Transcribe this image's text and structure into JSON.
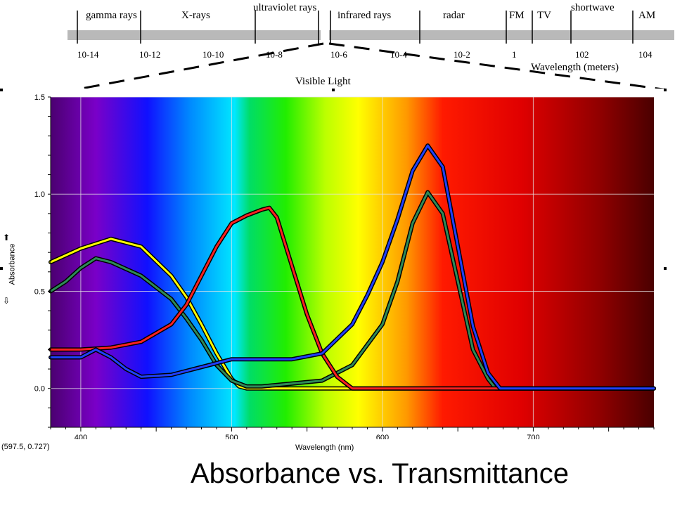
{
  "em_bands": [
    "gamma rays",
    "X-rays",
    "ultraviolet rays",
    "infrared rays",
    "radar",
    "FM",
    "TV",
    "shortwave",
    "AM"
  ],
  "em_ticks": [
    "10-14",
    "10-12",
    "10-10",
    "10-8",
    "10-6",
    "10-4",
    "10-2",
    "1",
    "102",
    "104"
  ],
  "em_axis_label": "Wavelength (meters)",
  "visible_label": "Visible Light",
  "readout": "(597.5, 0.727)",
  "caption": "Absorbance vs. Transmittance",
  "chart_data": {
    "type": "line",
    "xlabel": "Wavelength (nm)",
    "ylabel": "Absorbance",
    "xlim": [
      380,
      780
    ],
    "ylim": [
      -0.2,
      1.5
    ],
    "x_ticks": [
      "400",
      "500",
      "600",
      "700"
    ],
    "y_ticks": [
      "1.5",
      "1.0",
      "0.5",
      "0.0"
    ],
    "grid": true,
    "series": [
      {
        "color": "#ffff00",
        "x": [
          380,
          400,
          420,
          440,
          460,
          470,
          480,
          490,
          500,
          505,
          510,
          600,
          780
        ],
        "y": [
          0.65,
          0.72,
          0.77,
          0.73,
          0.58,
          0.47,
          0.33,
          0.18,
          0.05,
          0.01,
          0.0,
          0.0,
          0.0
        ]
      },
      {
        "color": "#2e8b57",
        "x": [
          380,
          390,
          400,
          410,
          420,
          440,
          460,
          470,
          480,
          490,
          500,
          510,
          520,
          560,
          580,
          600,
          610,
          620,
          630,
          640,
          650,
          660,
          670,
          675,
          780
        ],
        "y": [
          0.5,
          0.55,
          0.62,
          0.67,
          0.65,
          0.58,
          0.46,
          0.36,
          0.25,
          0.12,
          0.04,
          0.01,
          0.01,
          0.04,
          0.12,
          0.33,
          0.55,
          0.85,
          1.01,
          0.9,
          0.55,
          0.2,
          0.05,
          0.0,
          0.0
        ]
      },
      {
        "color": "#ff2020",
        "x": [
          380,
          400,
          420,
          440,
          460,
          470,
          480,
          490,
          500,
          510,
          520,
          525,
          530,
          540,
          550,
          560,
          570,
          580,
          780
        ],
        "y": [
          0.2,
          0.2,
          0.21,
          0.24,
          0.33,
          0.43,
          0.58,
          0.73,
          0.85,
          0.89,
          0.92,
          0.93,
          0.88,
          0.63,
          0.38,
          0.18,
          0.06,
          0.0,
          0.0
        ]
      },
      {
        "color": "#2040ff",
        "x": [
          380,
          400,
          410,
          420,
          430,
          440,
          460,
          480,
          500,
          520,
          540,
          560,
          580,
          590,
          600,
          610,
          620,
          630,
          640,
          650,
          660,
          670,
          678,
          780
        ],
        "y": [
          0.16,
          0.16,
          0.2,
          0.16,
          0.1,
          0.06,
          0.07,
          0.11,
          0.15,
          0.15,
          0.15,
          0.18,
          0.33,
          0.48,
          0.65,
          0.87,
          1.12,
          1.25,
          1.14,
          0.73,
          0.32,
          0.08,
          0.0,
          0.0
        ]
      }
    ]
  }
}
